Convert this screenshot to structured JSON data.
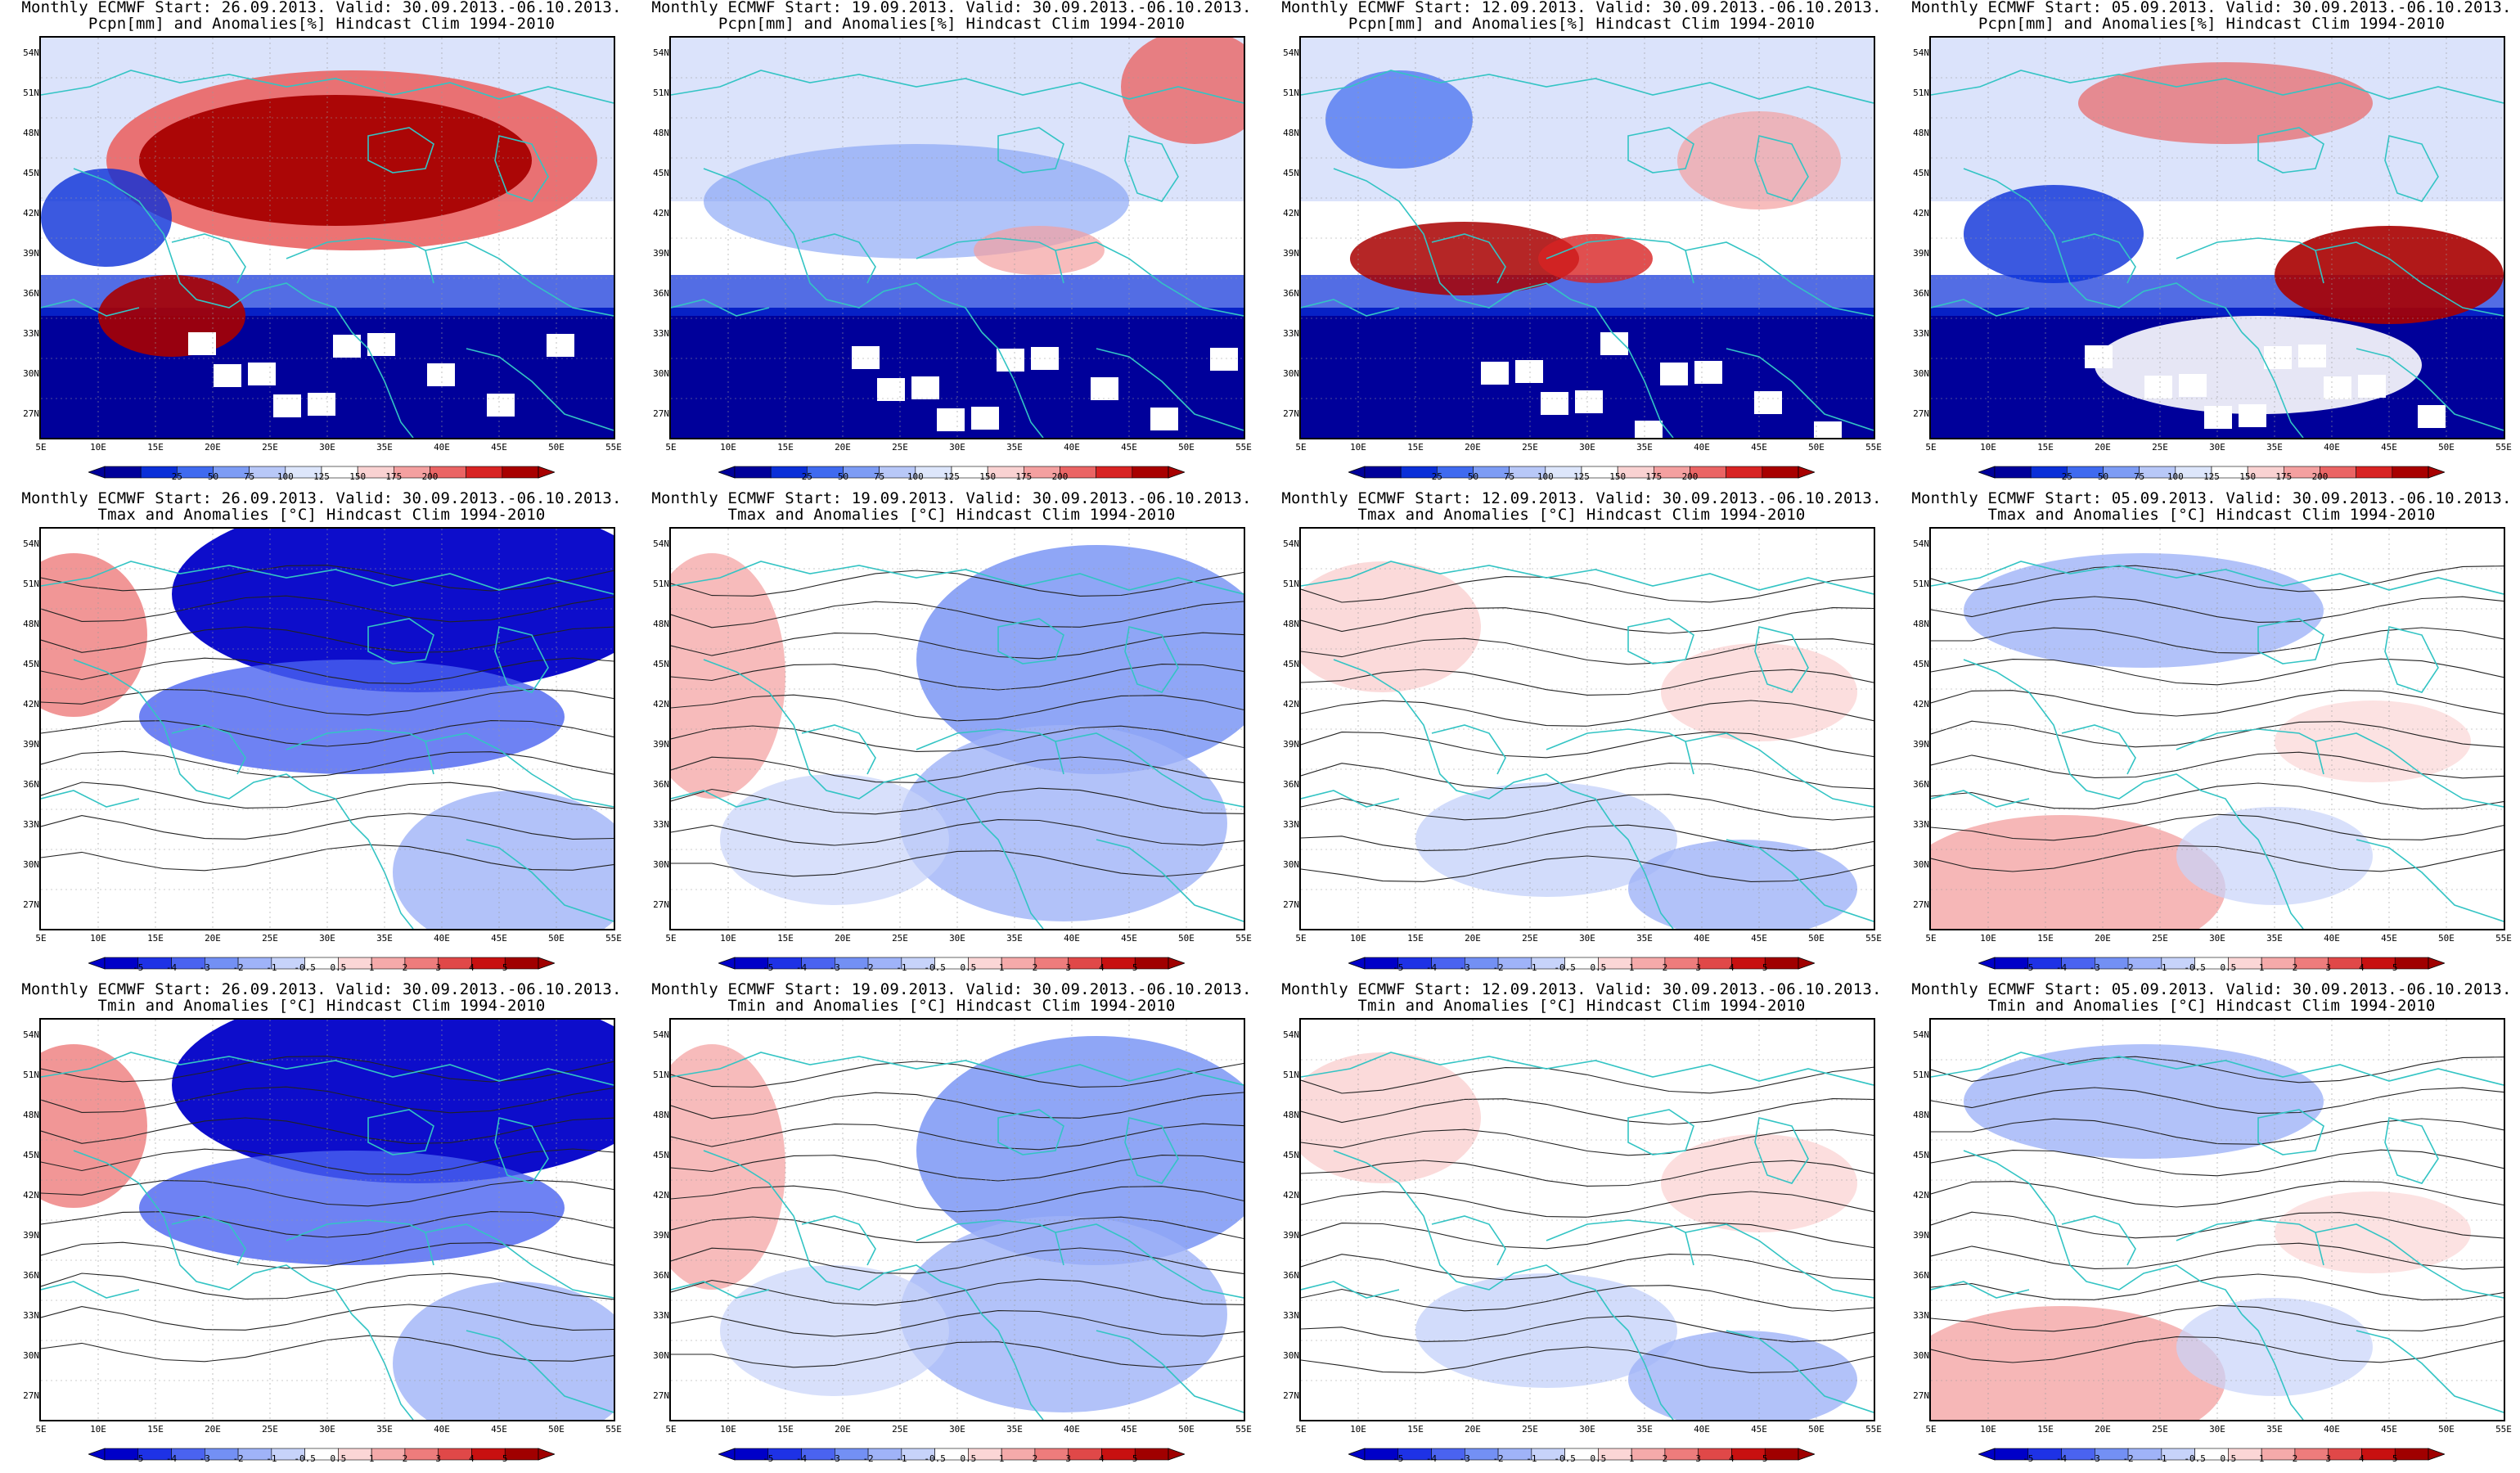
{
  "panels": [
    {
      "line1": "Monthly ECMWF Start: 26.09.2013. Valid: 30.09.2013.-06.10.2013.",
      "line2": "Pcpn[mm] and Anomalies[%] Hindcast Clim 1994-2010",
      "kind": "pcpn",
      "variant": 0
    },
    {
      "line1": "Monthly ECMWF Start: 19.09.2013. Valid: 30.09.2013.-06.10.2013.",
      "line2": "Pcpn[mm] and Anomalies[%] Hindcast Clim 1994-2010",
      "kind": "pcpn",
      "variant": 1
    },
    {
      "line1": "Monthly ECMWF Start: 12.09.2013. Valid: 30.09.2013.-06.10.2013.",
      "line2": "Pcpn[mm] and Anomalies[%] Hindcast Clim 1994-2010",
      "kind": "pcpn",
      "variant": 2
    },
    {
      "line1": "Monthly ECMWF Start: 05.09.2013. Valid: 30.09.2013.-06.10.2013.",
      "line2": "Pcpn[mm] and Anomalies[%] Hindcast Clim 1994-2010",
      "kind": "pcpn",
      "variant": 3
    },
    {
      "line1": "Monthly ECMWF Start: 26.09.2013. Valid: 30.09.2013.-06.10.2013.",
      "line2": "Tmax and Anomalies [°C] Hindcast Clim 1994-2010",
      "kind": "temp",
      "variant": 0
    },
    {
      "line1": "Monthly ECMWF Start: 19.09.2013. Valid: 30.09.2013.-06.10.2013.",
      "line2": "Tmax and Anomalies [°C] Hindcast Clim 1994-2010",
      "kind": "temp",
      "variant": 1
    },
    {
      "line1": "Monthly ECMWF Start: 12.09.2013. Valid: 30.09.2013.-06.10.2013.",
      "line2": "Tmax and Anomalies [°C] Hindcast Clim 1994-2010",
      "kind": "temp",
      "variant": 2
    },
    {
      "line1": "Monthly ECMWF Start: 05.09.2013. Valid: 30.09.2013.-06.10.2013.",
      "line2": "Tmax and Anomalies [°C] Hindcast Clim 1994-2010",
      "kind": "temp",
      "variant": 3
    },
    {
      "line1": "Monthly ECMWF Start: 26.09.2013. Valid: 30.09.2013.-06.10.2013.",
      "line2": "Tmin and Anomalies [°C] Hindcast Clim 1994-2010",
      "kind": "temp",
      "variant": 0
    },
    {
      "line1": "Monthly ECMWF Start: 19.09.2013. Valid: 30.09.2013.-06.10.2013.",
      "line2": "Tmin and Anomalies [°C] Hindcast Clim 1994-2010",
      "kind": "temp",
      "variant": 1
    },
    {
      "line1": "Monthly ECMWF Start: 12.09.2013. Valid: 30.09.2013.-06.10.2013.",
      "line2": "Tmin and Anomalies [°C] Hindcast Clim 1994-2010",
      "kind": "temp",
      "variant": 2
    },
    {
      "line1": "Monthly ECMWF Start: 05.09.2013. Valid: 30.09.2013.-06.10.2013.",
      "line2": "Tmin and Anomalies [°C] Hindcast Clim 1994-2010",
      "kind": "temp",
      "variant": 3
    }
  ],
  "lat_labels": [
    "54N",
    "51N",
    "48N",
    "45N",
    "42N",
    "39N",
    "36N",
    "33N",
    "30N",
    "27N"
  ],
  "lon_labels": [
    "5E",
    "10E",
    "15E",
    "20E",
    "25E",
    "30E",
    "35E",
    "40E",
    "45E",
    "50E",
    "55E"
  ],
  "pcpn_scale": {
    "labels": [
      "25",
      "50",
      "75",
      "100",
      "125",
      "150",
      "175",
      "200"
    ],
    "colors": [
      "#00009a",
      "#0a2fd8",
      "#3f6af0",
      "#7d9cf5",
      "#b8c8f8",
      "#dde6fb",
      "#ffffff",
      "#f9d2d2",
      "#f4a0a0",
      "#ea6464",
      "#d82323",
      "#a80000"
    ]
  },
  "temp_scale": {
    "labels": [
      "-5",
      "-4",
      "-3",
      "-2",
      "-1",
      "-0.5",
      "0.5",
      "1",
      "2",
      "3",
      "4",
      "5"
    ],
    "colors": [
      "#0000c8",
      "#1e32e6",
      "#4a63f0",
      "#7390f4",
      "#9fb3f8",
      "#c7d3fa",
      "#ffffff",
      "#fbd6d6",
      "#f5aaaa",
      "#ee7c7c",
      "#e04848",
      "#c81010",
      "#a00000"
    ]
  }
}
